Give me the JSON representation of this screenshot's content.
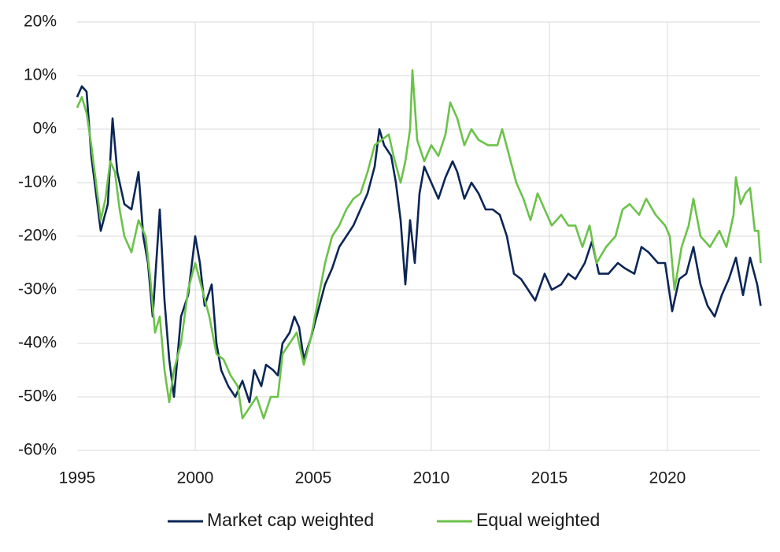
{
  "chart_data": {
    "type": "line",
    "xlim": [
      1995,
      2024
    ],
    "xticks": [
      1995,
      2000,
      2005,
      2010,
      2015,
      2020
    ],
    "ylim": [
      -60,
      20
    ],
    "yticks": [
      {
        "value": 20,
        "label": "20%"
      },
      {
        "value": 10,
        "label": "10%"
      },
      {
        "value": 0,
        "label": "0%"
      },
      {
        "value": -10,
        "label": "-10%"
      },
      {
        "value": -20,
        "label": "-20%"
      },
      {
        "value": -30,
        "label": "-30%"
      },
      {
        "value": -40,
        "label": "-40%"
      },
      {
        "value": -50,
        "label": "-50%"
      },
      {
        "value": -60,
        "label": "-60%"
      }
    ],
    "grid": true,
    "legend": "bottom",
    "series": [
      {
        "name": "Market cap weighted",
        "color": "#0b2656",
        "x": [
          1995.0,
          1995.2,
          1995.4,
          1995.6,
          1995.8,
          1996.0,
          1996.3,
          1996.5,
          1996.7,
          1997.0,
          1997.3,
          1997.6,
          1997.8,
          1998.0,
          1998.2,
          1998.5,
          1998.7,
          1998.9,
          1999.1,
          1999.4,
          1999.7,
          2000.0,
          2000.2,
          2000.4,
          2000.7,
          2000.9,
          2001.1,
          2001.4,
          2001.7,
          2002.0,
          2002.3,
          2002.5,
          2002.8,
          2003.0,
          2003.3,
          2003.5,
          2003.7,
          2004.0,
          2004.2,
          2004.4,
          2004.6,
          2004.9,
          2005.2,
          2005.5,
          2005.8,
          2006.1,
          2006.4,
          2006.7,
          2007.0,
          2007.3,
          2007.6,
          2007.8,
          2008.0,
          2008.3,
          2008.5,
          2008.7,
          2008.9,
          2009.1,
          2009.3,
          2009.5,
          2009.7,
          2010.0,
          2010.3,
          2010.6,
          2010.9,
          2011.1,
          2011.4,
          2011.7,
          2012.0,
          2012.3,
          2012.6,
          2012.9,
          2013.2,
          2013.5,
          2013.8,
          2014.1,
          2014.4,
          2014.8,
          2015.1,
          2015.5,
          2015.8,
          2016.1,
          2016.5,
          2016.8,
          2017.1,
          2017.5,
          2017.9,
          2018.2,
          2018.6,
          2018.9,
          2019.2,
          2019.6,
          2019.9,
          2020.2,
          2020.5,
          2020.8,
          2021.1,
          2021.4,
          2021.7,
          2022.0,
          2022.3,
          2022.6,
          2022.9,
          2023.2,
          2023.5,
          2023.8,
          2023.95
        ],
        "values": [
          6,
          8,
          7,
          -5,
          -12,
          -19,
          -14,
          2,
          -8,
          -14,
          -15,
          -8,
          -20,
          -25,
          -35,
          -15,
          -32,
          -43,
          -50,
          -35,
          -31,
          -20,
          -25,
          -33,
          -29,
          -40,
          -45,
          -48,
          -50,
          -47,
          -51,
          -45,
          -48,
          -44,
          -45,
          -46,
          -40,
          -38,
          -35,
          -37,
          -43,
          -39,
          -34,
          -29,
          -26,
          -22,
          -20,
          -18,
          -15,
          -12,
          -7,
          0,
          -3,
          -5,
          -10,
          -17,
          -29,
          -17,
          -25,
          -12,
          -7,
          -10,
          -13,
          -9,
          -6,
          -8,
          -13,
          -10,
          -12,
          -15,
          -15,
          -16,
          -20,
          -27,
          -28,
          -30,
          -32,
          -27,
          -30,
          -29,
          -27,
          -28,
          -25,
          -21,
          -27,
          -27,
          -25,
          -26,
          -27,
          -22,
          -23,
          -25,
          -25,
          -34,
          -28,
          -27,
          -22,
          -29,
          -33,
          -35,
          -31,
          -28,
          -24,
          -31,
          -24,
          -29,
          -33
        ]
      },
      {
        "name": "Equal weighted",
        "color": "#6cc24a",
        "x": [
          1995.0,
          1995.2,
          1995.4,
          1995.6,
          1995.8,
          1996.0,
          1996.2,
          1996.4,
          1996.6,
          1996.8,
          1997.0,
          1997.3,
          1997.6,
          1997.9,
          1998.1,
          1998.3,
          1998.5,
          1998.7,
          1998.9,
          1999.1,
          1999.4,
          1999.7,
          2000.0,
          2000.3,
          2000.6,
          2000.9,
          2001.2,
          2001.5,
          2001.8,
          2002.0,
          2002.3,
          2002.6,
          2002.9,
          2003.2,
          2003.5,
          2003.7,
          2004.0,
          2004.3,
          2004.6,
          2004.9,
          2005.2,
          2005.5,
          2005.8,
          2006.1,
          2006.4,
          2006.7,
          2007.0,
          2007.3,
          2007.6,
          2007.9,
          2008.2,
          2008.4,
          2008.7,
          2008.9,
          2009.1,
          2009.2,
          2009.4,
          2009.7,
          2010.0,
          2010.3,
          2010.6,
          2010.8,
          2011.1,
          2011.4,
          2011.7,
          2012.0,
          2012.4,
          2012.8,
          2013.0,
          2013.3,
          2013.6,
          2013.9,
          2014.2,
          2014.5,
          2014.8,
          2015.1,
          2015.5,
          2015.8,
          2016.1,
          2016.4,
          2016.7,
          2017.0,
          2017.4,
          2017.8,
          2018.1,
          2018.4,
          2018.8,
          2019.1,
          2019.5,
          2019.9,
          2020.1,
          2020.3,
          2020.6,
          2020.9,
          2021.1,
          2021.4,
          2021.8,
          2022.2,
          2022.5,
          2022.8,
          2022.9,
          2023.1,
          2023.3,
          2023.5,
          2023.7,
          2023.85,
          2023.95
        ],
        "values": [
          4,
          6,
          3,
          -3,
          -10,
          -17,
          -13,
          -6,
          -8,
          -15,
          -20,
          -23,
          -17,
          -20,
          -28,
          -38,
          -35,
          -45,
          -51,
          -45,
          -40,
          -30,
          -25,
          -30,
          -35,
          -42,
          -43,
          -46,
          -48,
          -54,
          -52,
          -50,
          -54,
          -50,
          -50,
          -42,
          -40,
          -38,
          -44,
          -39,
          -32,
          -25,
          -20,
          -18,
          -15,
          -13,
          -12,
          -8,
          -3,
          -2,
          -1,
          -5,
          -10,
          -6,
          0,
          11,
          -2,
          -6,
          -3,
          -5,
          -1,
          5,
          2,
          -3,
          0,
          -2,
          -3,
          -3,
          0,
          -5,
          -10,
          -13,
          -17,
          -12,
          -15,
          -18,
          -16,
          -18,
          -18,
          -22,
          -18,
          -25,
          -22,
          -20,
          -15,
          -14,
          -16,
          -13,
          -16,
          -18,
          -20,
          -30,
          -22,
          -18,
          -13,
          -20,
          -22,
          -19,
          -22,
          -16,
          -9,
          -14,
          -12,
          -11,
          -19,
          -19,
          -25
        ]
      }
    ]
  }
}
